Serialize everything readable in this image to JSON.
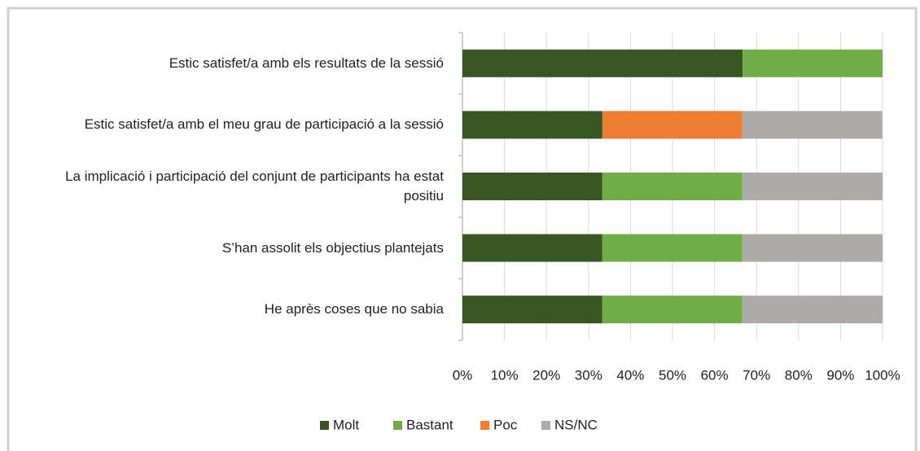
{
  "chart_data": {
    "type": "bar",
    "orientation": "horizontal",
    "stacked": true,
    "categories": [
      "Estic satisfet/a amb els resultats de la sessió",
      "Estic satisfet/a amb el meu grau de participació a la sessió",
      "La implicació i participació del conjunt de participants ha estat positiu",
      "S’han assolit els objectius plantejats",
      "He après coses que no sabia"
    ],
    "series": [
      {
        "name": "Molt",
        "color": "#375623",
        "values": [
          66.7,
          33.3,
          33.3,
          33.3,
          33.3
        ]
      },
      {
        "name": "Bastant",
        "color": "#70ad47",
        "values": [
          33.3,
          0,
          33.3,
          33.3,
          33.3
        ]
      },
      {
        "name": "Poc",
        "color": "#ed7d31",
        "values": [
          0,
          33.3,
          0,
          0,
          0
        ]
      },
      {
        "name": "NS/NC",
        "color": "#aeaaaa",
        "values": [
          0,
          33.3,
          33.4,
          33.4,
          33.4
        ]
      }
    ],
    "xlim": [
      0,
      100
    ],
    "xticks": [
      {
        "value": 0,
        "label": "0%"
      },
      {
        "value": 10,
        "label": "10%"
      },
      {
        "value": 20,
        "label": "20%"
      },
      {
        "value": 30,
        "label": "30%"
      },
      {
        "value": 40,
        "label": "40%"
      },
      {
        "value": 50,
        "label": "50%"
      },
      {
        "value": 60,
        "label": "60%"
      },
      {
        "value": 70,
        "label": "70%"
      },
      {
        "value": 80,
        "label": "80%"
      },
      {
        "value": 90,
        "label": "90%"
      },
      {
        "value": 100,
        "label": "100%"
      }
    ],
    "grid": true,
    "legend": "bottom"
  }
}
